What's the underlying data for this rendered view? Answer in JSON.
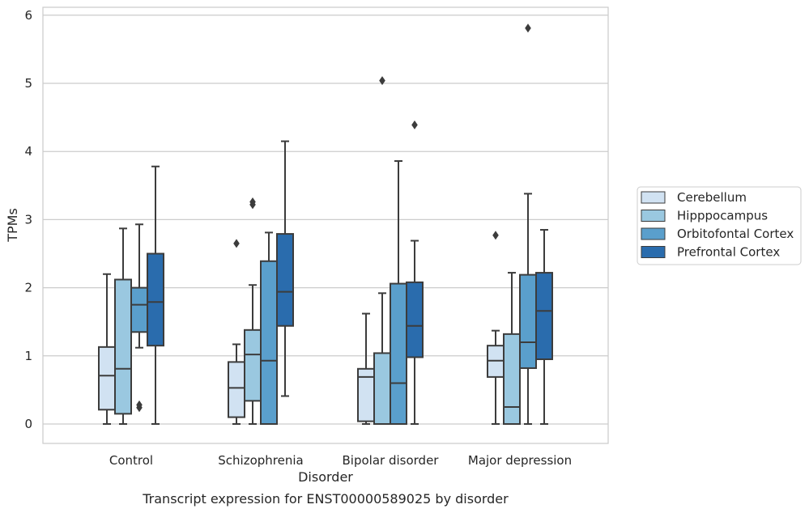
{
  "caption": "Transcript expression for ENST00000589025 by disorder",
  "chart_data": {
    "type": "box",
    "xlabel": "Disorder",
    "ylabel": "TPMs",
    "ylim": [
      -0.28,
      6.1
    ],
    "yticks": [
      0,
      1,
      2,
      3,
      4,
      5,
      6
    ],
    "grid": "horizontal",
    "legend_position": "right",
    "categories": [
      "Control",
      "Schizophrenia",
      "Bipolar disorder",
      "Major depression"
    ],
    "series": [
      {
        "name": "Cerebellum",
        "color": "#d1e2f2",
        "boxes": [
          {
            "whislo": 0.0,
            "q1": 0.21,
            "med": 0.71,
            "q3": 1.13,
            "whishi": 2.2,
            "fliers": []
          },
          {
            "whislo": 0.0,
            "q1": 0.1,
            "med": 0.53,
            "q3": 0.91,
            "whishi": 1.17,
            "fliers": [
              2.65
            ]
          },
          {
            "whislo": 0.0,
            "q1": 0.04,
            "med": 0.69,
            "q3": 0.81,
            "whishi": 1.62,
            "fliers": []
          },
          {
            "whislo": 0.0,
            "q1": 0.69,
            "med": 0.93,
            "q3": 1.15,
            "whishi": 1.37,
            "fliers": [
              2.77
            ]
          }
        ]
      },
      {
        "name": "Hipppocampus",
        "color": "#9ac8e0",
        "boxes": [
          {
            "whislo": 0.0,
            "q1": 0.15,
            "med": 0.81,
            "q3": 2.12,
            "whishi": 2.87,
            "fliers": []
          },
          {
            "whislo": 0.0,
            "q1": 0.34,
            "med": 1.02,
            "q3": 1.38,
            "whishi": 2.04,
            "fliers": [
              3.22,
              3.26
            ]
          },
          {
            "whislo": 0.0,
            "q1": 0.0,
            "med": 0.0,
            "q3": 1.04,
            "whishi": 1.92,
            "fliers": [
              5.04
            ]
          },
          {
            "whislo": 0.0,
            "q1": 0.0,
            "med": 0.25,
            "q3": 1.32,
            "whishi": 2.22,
            "fliers": []
          }
        ]
      },
      {
        "name": "Orbitofontal Cortex",
        "color": "#5a9fcc",
        "boxes": [
          {
            "whislo": 1.12,
            "q1": 1.35,
            "med": 1.75,
            "q3": 2.0,
            "whishi": 2.93,
            "fliers": [
              0.24,
              0.28
            ]
          },
          {
            "whislo": 0.0,
            "q1": 0.0,
            "med": 0.93,
            "q3": 2.39,
            "whishi": 2.81,
            "fliers": []
          },
          {
            "whislo": 0.0,
            "q1": 0.0,
            "med": 0.6,
            "q3": 2.06,
            "whishi": 3.86,
            "fliers": []
          },
          {
            "whislo": 0.0,
            "q1": 0.82,
            "med": 1.2,
            "q3": 2.19,
            "whishi": 3.38,
            "fliers": [
              5.81
            ]
          }
        ]
      },
      {
        "name": "Prefrontal Cortex",
        "color": "#2a6cad",
        "boxes": [
          {
            "whislo": 0.0,
            "q1": 1.15,
            "med": 1.79,
            "q3": 2.5,
            "whishi": 3.78,
            "fliers": []
          },
          {
            "whislo": 0.41,
            "q1": 1.44,
            "med": 1.94,
            "q3": 2.79,
            "whishi": 4.15,
            "fliers": []
          },
          {
            "whislo": 0.0,
            "q1": 0.98,
            "med": 1.44,
            "q3": 2.08,
            "whishi": 2.69,
            "fliers": [
              4.39
            ]
          },
          {
            "whislo": 0.0,
            "q1": 0.95,
            "med": 1.66,
            "q3": 2.22,
            "whishi": 2.85,
            "fliers": []
          }
        ]
      }
    ]
  }
}
